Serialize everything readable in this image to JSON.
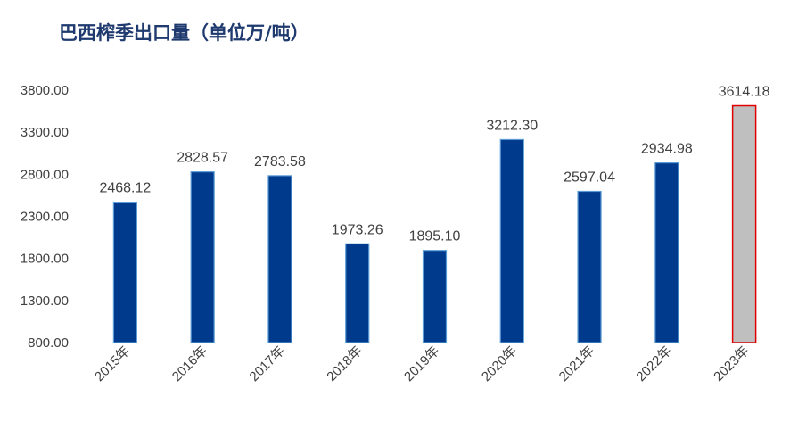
{
  "chart_data": {
    "type": "bar",
    "title": "巴西榨季出口量（单位万/吨）",
    "categories": [
      "2015年",
      "2016年",
      "2017年",
      "2018年",
      "2019年",
      "2020年",
      "2021年",
      "2022年",
      "2023年"
    ],
    "values": [
      2468.12,
      2828.57,
      2783.58,
      1973.26,
      1895.1,
      3212.3,
      2597.04,
      2934.98,
      3614.18
    ],
    "value_labels": [
      "2468.12",
      "2828.57",
      "2783.58",
      "1973.26",
      "1895.10",
      "3212.30",
      "2597.04",
      "2934.98",
      "3614.18"
    ],
    "yticks": [
      "800.00",
      "1300.00",
      "1800.00",
      "2300.00",
      "2800.00",
      "3300.00",
      "3800.00"
    ],
    "ylim": [
      800,
      3800
    ],
    "grid": false,
    "colors": {
      "bar": "#003a8c",
      "bar_edge": "#5b9bd5",
      "highlight_fill": "#bfbfbf",
      "highlight_edge": "#e00000",
      "title": "#1f3a6e"
    },
    "highlight_index": 8
  }
}
